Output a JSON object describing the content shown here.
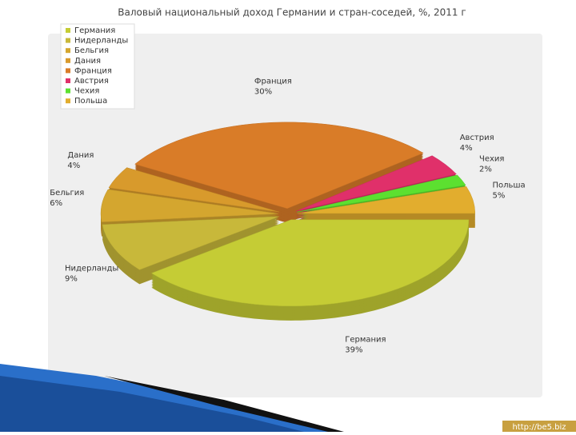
{
  "chart_data": {
    "type": "pie",
    "title": "Валовый национальный доход Германии и стран-соседей, %, 2011 г",
    "categories": [
      "Германия",
      "Нидерланды",
      "Бельгия",
      "Дания",
      "Франция",
      "Австрия",
      "Чехия",
      "Польша"
    ],
    "values": [
      39,
      9,
      6,
      4,
      30,
      4,
      2,
      5
    ],
    "value_labels": [
      "39%",
      "9%",
      "6%",
      "4%",
      "30%",
      "4%",
      "2%",
      "5%"
    ],
    "colors": [
      "#c5cc35",
      "#c8b83a",
      "#d4a62f",
      "#d89a2c",
      "#d97c28",
      "#e0306a",
      "#5ce030",
      "#e2ad2e"
    ],
    "legend": "upper left"
  },
  "watermark": "http://be5.biz"
}
